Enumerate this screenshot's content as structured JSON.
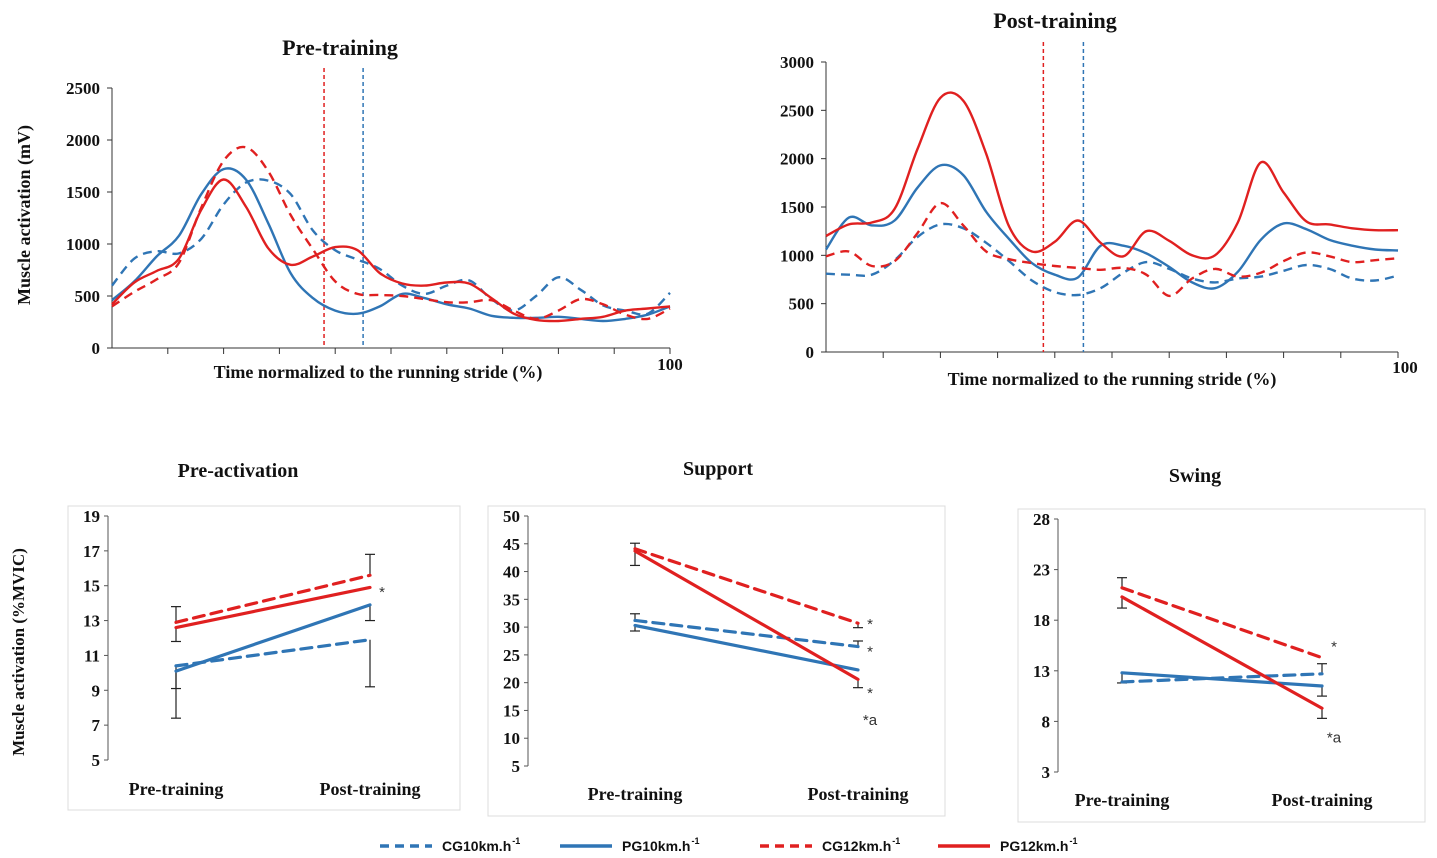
{
  "colors": {
    "CG10": "#2f75b5",
    "PG10": "#2f75b5",
    "CG12": "#e02020",
    "PG12": "#e02020"
  },
  "legend": [
    {
      "key": "CG10",
      "label": "CG10km.h",
      "sup": "-1",
      "dashed": true
    },
    {
      "key": "PG10",
      "label": "PG10km.h",
      "sup": "-1",
      "dashed": false
    },
    {
      "key": "CG12",
      "label": "CG12km.h",
      "sup": "-1",
      "dashed": true
    },
    {
      "key": "PG12",
      "label": "PG12km.h",
      "sup": "-1",
      "dashed": false
    }
  ],
  "chart_data": [
    {
      "type": "line",
      "title": "Pre-training",
      "xlabel": "Time normalized to the running stride (%)",
      "ylabel": "Muscle activation (mV)",
      "xlim": [
        0,
        100
      ],
      "ylim": [
        0,
        2500
      ],
      "yticks": [
        0,
        500,
        1000,
        1500,
        2000,
        2500
      ],
      "xtick_label": "100",
      "vlines": [
        {
          "x": 38,
          "series": "CG12"
        },
        {
          "x": 45,
          "series": "CG10"
        }
      ],
      "series": [
        {
          "key": "CG10",
          "x": [
            0,
            4,
            8,
            12,
            16,
            20,
            24,
            28,
            32,
            36,
            40,
            44,
            48,
            52,
            56,
            60,
            64,
            68,
            72,
            76,
            80,
            84,
            88,
            92,
            96,
            100
          ],
          "y": [
            600,
            860,
            930,
            910,
            1050,
            1380,
            1590,
            1610,
            1480,
            1130,
            940,
            850,
            760,
            600,
            520,
            600,
            650,
            470,
            360,
            500,
            680,
            560,
            410,
            360,
            330,
            530
          ]
        },
        {
          "key": "PG10",
          "x": [
            0,
            4,
            8,
            12,
            16,
            20,
            24,
            28,
            32,
            36,
            40,
            44,
            48,
            52,
            56,
            60,
            64,
            68,
            72,
            76,
            80,
            84,
            88,
            92,
            96,
            100
          ],
          "y": [
            460,
            640,
            880,
            1080,
            1480,
            1720,
            1620,
            1200,
            720,
            480,
            360,
            330,
            400,
            520,
            480,
            420,
            380,
            310,
            290,
            290,
            300,
            280,
            260,
            280,
            320,
            400
          ]
        },
        {
          "key": "CG12",
          "x": [
            0,
            4,
            8,
            12,
            16,
            20,
            24,
            28,
            32,
            36,
            40,
            44,
            48,
            52,
            56,
            60,
            64,
            68,
            72,
            76,
            80,
            84,
            88,
            92,
            96,
            100
          ],
          "y": [
            400,
            540,
            660,
            820,
            1350,
            1800,
            1930,
            1700,
            1280,
            950,
            640,
            520,
            510,
            500,
            470,
            440,
            440,
            460,
            360,
            280,
            360,
            470,
            420,
            320,
            280,
            380
          ]
        },
        {
          "key": "PG12",
          "x": [
            0,
            4,
            8,
            12,
            16,
            20,
            24,
            28,
            32,
            36,
            40,
            44,
            48,
            52,
            56,
            60,
            64,
            68,
            72,
            76,
            80,
            84,
            88,
            92,
            96,
            100
          ],
          "y": [
            420,
            630,
            740,
            860,
            1330,
            1620,
            1360,
            960,
            800,
            880,
            970,
            940,
            720,
            620,
            600,
            630,
            620,
            480,
            330,
            270,
            260,
            280,
            300,
            360,
            380,
            400
          ]
        }
      ]
    },
    {
      "type": "line",
      "title": "Post-training",
      "xlabel": "Time normalized to the running stride (%)",
      "ylabel": "",
      "xlim": [
        0,
        100
      ],
      "ylim": [
        0,
        3000
      ],
      "yticks": [
        0,
        500,
        1000,
        1500,
        2000,
        2500,
        3000
      ],
      "xtick_label": "100",
      "vlines": [
        {
          "x": 38,
          "series": "CG12"
        },
        {
          "x": 45,
          "series": "CG10"
        }
      ],
      "series": [
        {
          "key": "CG10",
          "x": [
            0,
            4,
            8,
            12,
            16,
            20,
            24,
            28,
            32,
            36,
            40,
            44,
            48,
            52,
            56,
            60,
            64,
            68,
            72,
            76,
            80,
            84,
            88,
            92,
            96,
            100
          ],
          "y": [
            810,
            800,
            800,
            950,
            1190,
            1320,
            1280,
            1130,
            940,
            740,
            620,
            590,
            660,
            820,
            930,
            860,
            760,
            720,
            760,
            780,
            840,
            900,
            860,
            760,
            740,
            790
          ]
        },
        {
          "key": "PG10",
          "x": [
            0,
            4,
            8,
            12,
            16,
            20,
            24,
            28,
            32,
            36,
            40,
            44,
            48,
            52,
            56,
            60,
            64,
            68,
            72,
            76,
            80,
            84,
            88,
            92,
            96,
            100
          ],
          "y": [
            1060,
            1390,
            1310,
            1360,
            1700,
            1930,
            1830,
            1450,
            1170,
            920,
            800,
            770,
            1100,
            1100,
            1020,
            880,
            720,
            660,
            830,
            1160,
            1330,
            1270,
            1160,
            1100,
            1060,
            1050
          ]
        },
        {
          "key": "CG12",
          "x": [
            0,
            4,
            8,
            12,
            16,
            20,
            24,
            28,
            32,
            36,
            40,
            44,
            48,
            52,
            56,
            60,
            64,
            68,
            72,
            76,
            80,
            84,
            88,
            92,
            96,
            100
          ],
          "y": [
            990,
            1040,
            890,
            940,
            1230,
            1540,
            1310,
            1040,
            960,
            920,
            890,
            870,
            850,
            870,
            800,
            580,
            760,
            860,
            780,
            820,
            940,
            1030,
            990,
            930,
            950,
            970
          ]
        },
        {
          "key": "PG12",
          "x": [
            0,
            4,
            8,
            12,
            16,
            20,
            24,
            28,
            32,
            36,
            40,
            44,
            48,
            52,
            56,
            60,
            64,
            68,
            72,
            76,
            80,
            84,
            88,
            92,
            96,
            100
          ],
          "y": [
            1200,
            1320,
            1340,
            1480,
            2100,
            2630,
            2600,
            2050,
            1300,
            1040,
            1140,
            1360,
            1130,
            990,
            1250,
            1150,
            1000,
            1000,
            1340,
            1960,
            1650,
            1350,
            1320,
            1280,
            1260,
            1260
          ]
        }
      ]
    },
    {
      "type": "line",
      "title": "Pre-activation",
      "ylabel": "Muscle activation (%MVIC)",
      "categories": [
        "Pre-training",
        "Post-training"
      ],
      "ylim": [
        5,
        19
      ],
      "yticks": [
        5,
        7,
        9,
        11,
        13,
        15,
        17,
        19
      ],
      "series": [
        {
          "key": "CG10",
          "values": [
            10.4,
            11.9
          ],
          "err": [
            [
              -3.0,
              0
            ],
            [
              -2.7,
              0
            ]
          ]
        },
        {
          "key": "PG10",
          "values": [
            10.1,
            13.9
          ],
          "err": [
            [
              -1.0,
              0
            ],
            [
              -0.9,
              0
            ]
          ]
        },
        {
          "key": "CG12",
          "values": [
            12.9,
            15.6
          ],
          "err": [
            [
              0,
              0.9
            ],
            [
              0,
              1.2
            ]
          ]
        },
        {
          "key": "PG12",
          "values": [
            12.6,
            14.9
          ],
          "err": [
            [
              -0.8,
              0
            ],
            [
              0,
              0
            ]
          ]
        }
      ],
      "annotations": [
        {
          "text": "*",
          "x": 1,
          "y": 14.7
        }
      ]
    },
    {
      "type": "line",
      "title": "Support",
      "categories": [
        "Pre-training",
        "Post-training"
      ],
      "ylim": [
        5,
        50
      ],
      "yticks": [
        5,
        10,
        15,
        20,
        25,
        30,
        35,
        40,
        45,
        50
      ],
      "series": [
        {
          "key": "CG10",
          "values": [
            31.2,
            26.5
          ],
          "err": [
            [
              0,
              1.2
            ],
            [
              0,
              1.0
            ]
          ]
        },
        {
          "key": "PG10",
          "values": [
            30.3,
            22.3
          ],
          "err": [
            [
              -1.0,
              0
            ],
            [
              0,
              0
            ]
          ]
        },
        {
          "key": "CG12",
          "values": [
            44.1,
            30.7
          ],
          "err": [
            [
              0,
              1.0
            ],
            [
              -0.8,
              0
            ]
          ]
        },
        {
          "key": "PG12",
          "values": [
            43.7,
            20.6
          ],
          "err": [
            [
              -2.6,
              0
            ],
            [
              -1.5,
              0
            ]
          ]
        }
      ],
      "annotations": [
        {
          "text": "*",
          "x": 1,
          "y": 30.7
        },
        {
          "text": "*",
          "x": 1,
          "y": 25.8
        },
        {
          "text": "*",
          "x": 1,
          "y": 18.3
        },
        {
          "text": "*a",
          "x": 1,
          "y": 13.5
        }
      ]
    },
    {
      "type": "line",
      "title": "Swing",
      "categories": [
        "Pre-training",
        "Post-training"
      ],
      "ylim": [
        3,
        28
      ],
      "yticks": [
        3,
        8,
        13,
        18,
        23,
        28
      ],
      "series": [
        {
          "key": "CG10",
          "values": [
            11.9,
            12.7
          ],
          "err": [
            [
              0,
              0
            ],
            [
              0,
              1.0
            ]
          ]
        },
        {
          "key": "PG10",
          "values": [
            12.8,
            11.5
          ],
          "err": [
            [
              -1.0,
              0
            ],
            [
              -1.0,
              0
            ]
          ]
        },
        {
          "key": "CG12",
          "values": [
            21.2,
            14.3
          ],
          "err": [
            [
              0,
              1.0
            ],
            [
              0,
              0
            ]
          ]
        },
        {
          "key": "PG12",
          "values": [
            20.3,
            9.3
          ],
          "err": [
            [
              -1.1,
              0
            ],
            [
              -1.0,
              0
            ]
          ]
        }
      ],
      "annotations": [
        {
          "text": "*",
          "x": 1,
          "y": 15.5
        },
        {
          "text": "*a",
          "x": 1,
          "y": 6.5
        }
      ]
    }
  ]
}
